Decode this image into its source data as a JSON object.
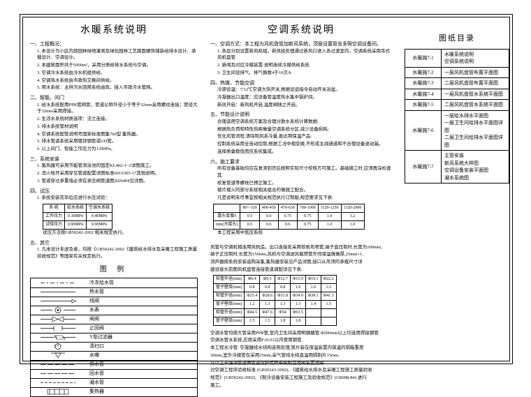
{
  "column1": {
    "title": "水暖系统说明",
    "sections": [
      {
        "head": "一、工程概况：",
        "items": [
          "1. 本设计为小区内部园林绿地灌溉及绿化园林工艺路面硬饰铺装给排水设计、承载设计、空调设计。",
          "2. 本建筑面积共于5000m²，采用分质给排水系统与空调。",
          "3. 空调冷水系统由冷水机组供给。",
          "4. 空调热水系统由市政热交换间供给。",
          "5. 用水系统：主供污水回用系统由现，接入市政污水管网。"
        ]
      },
      {
        "head": "二、智能、间门",
        "items": [
          "1. 给水系统配用PPR管网管，管道公称外径小于等于32mm采用螺纹连接；管径大于32mm采用焊接。",
          "2. 生活水系统材质选项：法兰连接。",
          "3. 排水系统管材说明",
          "4. 空调系统配管说明考国家标准图集760型 集热器。",
          "5. 排水管道系统采用镀锌钢管或UH管。",
          "6. 以上间门、智能工作压力为1.0MPα。"
        ]
      },
      {
        "head": "三、系统安装",
        "items": [
          "1. 集热器可采用节能管测浴池的固定KL402-1~2详图施工。",
          "2. 消火栓开采用穿见管道配置详图标准601S305-17其他说明。",
          "3. 管道穿过承重墙必须在承压阀管道图]02S404见详图。"
        ]
      },
      {
        "head": "四、试压",
        "items": [
          "1. 系统安装完毕后应进行水压试验："
        ]
      },
      {
        "head": "五、其它",
        "items": [
          "1. 凡本设计未述及者，均按《GB50242-2002《建筑给水排水及采暖工程施工质量验收规范》等国家有关规定执行。"
        ]
      }
    ],
    "pressure_table": {
      "headers": [
        "系  统",
        "给水系统",
        "空调水系统"
      ],
      "rows": [
        [
          "工作压力",
          "0.30MPα",
          "0.40MPα"
        ],
        [
          "试验压力",
          "0.90MPα",
          "0.90MPα"
        ]
      ],
      "note": "试压方法按GB50242-2002  相关规定执行。"
    },
    "legend_title": "图  例",
    "legend": [
      {
        "sym": "line-dash-short",
        "label": "冷冻给水管"
      },
      {
        "sym": "line-solid",
        "label": "热水管"
      },
      {
        "sym": "arrow-right",
        "label": "线阀"
      },
      {
        "sym": "circle-dot",
        "label": "水表"
      },
      {
        "sym": "bowtie",
        "label": "闸阀"
      },
      {
        "sym": "bracket",
        "label": "止回阀"
      },
      {
        "sym": "y-filter",
        "label": "Y型过滤器"
      },
      {
        "sym": "circle-open",
        "label": "清扫口"
      },
      {
        "sym": "arrow-down-open",
        "label": "水嘴"
      },
      {
        "sym": "line-ch",
        "label": "供水管"
      },
      {
        "sym": "line-rh",
        "label": "回水管"
      },
      {
        "sym": "line-cond",
        "label": "凝水管"
      },
      {
        "sym": "coil-box",
        "label": "集热器"
      }
    ]
  },
  "column2": {
    "title": "空调系统说明",
    "sections": [
      {
        "head": "一、空调方式：本工程为风机盘管加新风系统，顶层设置管含多照空调设备间。",
        "items": [
          "1. 各层分别设置新风机组，新风经处理通过新风口进入各过渡室内，空调系统采用吊式风机盘管",
          "2. 新闻及对应冷媒装置:说明连续冷媒供给系统",
          "3. 卫生间设排气、排气换数4于10次/h"
        ]
      },
      {
        "head": "四、热媒、节能空调",
        "items": [
          "冷源设温：7/12℃空调大热开关,根据设运指令自动开关浴盆。",
          "冷凝器出口温度：应设备管温度热水集中锅炉间。",
          "新风开启：新风机开启,温度阀随之开启。"
        ]
      },
      {
        "head": "五、节能设计说明",
        "items": [
          "合理选用空调系统方案及合理分散水系统计算数据;",
          "根据热负荷和特性热映做量空调系统分区,减少设备损耗;",
          "优化风管流程,清除和风系冷量,善达用保温产品;",
          "控制系统采用全自动控制,根据工况中相变换,不形成主阔通道和不合理设备波动漏。",
          "选择质量稳低而压系统集成。"
        ]
      },
      {
        "head": "六、施工要求",
        "items": [
          "所有设备基础均应在复测到货后按照实际尺寸校核方可施工。基础施工时,应须再深检查其",
          "校复管道等螺栓已预正施工。",
          "玻片载火的部分系统相关组合的做施工配合。",
          "凡是说明未尽事宜按相关规范执行订制版,规范要求见下表:"
        ]
      }
    ],
    "thick_table": {
      "header_row": [
        "",
        "80<-320",
        "400-450",
        "470-630",
        "700-1000",
        "1120-1250",
        "1320-2000"
      ],
      "rows": [
        [
          "露头厚度δ",
          "0.5",
          "0.6",
          "0.75",
          "0.75",
          "1.0",
          "1.2"
        ],
        [
          "mm(大接头)",
          "0.5",
          "0.6",
          "0.6",
          "0.75",
          "1.0",
          "1.0"
        ]
      ],
      "note": "本工程采用中低压系统"
    },
    "middle_paras": [
      "风管与空调机相连用风帆造。出口连接处采用软帆布喷管,端子直压制时,长度为100mm,",
      "端子正压制时,长度为150mm,风机与空调送风载荷管外同保温做做厚,25mm×1,",
      "消声器按系统安装选购采集,集热器安装见产品详图,接口从吊顶的承载尺寸详",
      "建设接头前图风机盘管连接管道调配详见下表:"
    ],
    "pipe_table": {
      "rows": [
        [
          "软管外径(mm)",
          "Φ6.4",
          "Φ9.5",
          "Φ12.7",
          "Φ15.9",
          "Φ19.1",
          "Φ22.2"
        ],
        [
          "管子壁厚(mm)",
          "0.8",
          "0.8",
          "0.8",
          "1.0",
          "1.0",
          "1.2"
        ],
        [
          "软管外径(mm)",
          "Φ25.4",
          "Φ28.6",
          "Φ31.8",
          "Φ34.9",
          "Φ38.1",
          "Φ41.3"
        ],
        [
          "管子壁厚(mm)",
          "1.2",
          "1.3",
          "1.3",
          "1.3",
          "1.4",
          "1.5"
        ],
        [
          "软管外径(mm)",
          "Φ44.5",
          "Φ47.6",
          "Φ54",
          "Φ63.5",
          "",
          ""
        ],
        [
          "管子壁厚(mm)",
          "1.5",
          "1.5",
          "1.8",
          "1.8",
          "",
          ""
        ]
      ]
    },
    "bottom_paras": [
      "空调水管均按大管采用PPR管,室内卫生间采用明做搪管.Φ200mm以上均连用焊接钢管.",
      "空调水管水系统,应按采用F≤0.01以内使用钢管.",
      "本工程水冷管: 空凝器结水结构走观处理,铁片装在保温装置内保温的隔箱重度",
      "30mm,室外冷媒管仅采用35mm,采气管结水结直温用隔制片15mm.",
      "凡以上未强调管道做管道设护式样参照规范说明装置说明.",
      "对空调工程序验收标准 (GB50243-2002), 《建筑给水排水及采暖工程施工质量验收",
      "规范》(GB50242-2002), 《制冷设备安装工程施工及验收规范》(GBJ88-84) 进行",
      "施工。"
    ]
  },
  "column3": {
    "title": "图纸目录",
    "catalog": [
      {
        "num": "水暖施7-1",
        "desc": "水暖系统说明\n空调系统说明"
      },
      {
        "num": "水暖施7-2",
        "desc": "一层风机盘管布置平面图"
      },
      {
        "num": "水暖施7-3",
        "desc": "二层风机盘管布置平面图"
      },
      {
        "num": "水暖施7-4",
        "desc": "一层风机盘管水系统平面图"
      },
      {
        "num": "水暖施7-5",
        "desc": "二层风机盘管水系统平面图"
      },
      {
        "num": "水暖施7-6",
        "desc": "一层给水排水平面图\n一层卫生间给排水平面图详图\n二层卫生间给排水平面图详图"
      },
      {
        "num": "水暖施7-7",
        "desc": "主管安装\n新风系统大样图\n空调设备安装平面图\n凝水系统图"
      }
    ]
  }
}
